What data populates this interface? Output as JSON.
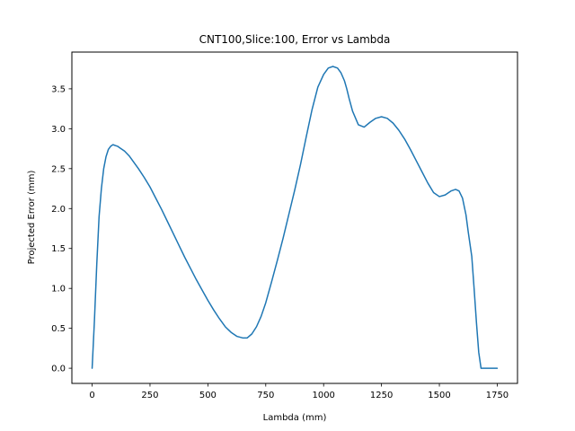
{
  "chart_data": {
    "type": "line",
    "title": "CNT100,Slice:100, Error vs Lambda",
    "xlabel": "Lambda (mm)",
    "ylabel": "Projected Error (mm)",
    "xlim": [
      -87.5,
      1837.5
    ],
    "ylim": [
      -0.19,
      3.96
    ],
    "xticks": [
      0,
      250,
      500,
      750,
      1000,
      1250,
      1500,
      1750
    ],
    "xtick_labels": [
      "0",
      "250",
      "500",
      "750",
      "1000",
      "1250",
      "1500",
      "1750"
    ],
    "yticks": [
      0.0,
      0.5,
      1.0,
      1.5,
      2.0,
      2.5,
      3.0,
      3.5
    ],
    "ytick_labels": [
      "0.0",
      "0.5",
      "1.0",
      "1.5",
      "2.0",
      "2.5",
      "3.0",
      "3.5"
    ],
    "grid": false,
    "color": "#1f77b4",
    "series": [
      {
        "name": "",
        "x": [
          0,
          10,
          20,
          30,
          40,
          50,
          60,
          70,
          80,
          90,
          100,
          110,
          120,
          140,
          160,
          180,
          200,
          225,
          250,
          275,
          300,
          325,
          350,
          375,
          400,
          425,
          450,
          475,
          500,
          525,
          550,
          575,
          600,
          625,
          650,
          670,
          690,
          710,
          730,
          750,
          775,
          800,
          825,
          850,
          875,
          900,
          925,
          950,
          975,
          1000,
          1020,
          1040,
          1060,
          1075,
          1090,
          1100,
          1110,
          1125,
          1150,
          1175,
          1200,
          1225,
          1250,
          1275,
          1300,
          1325,
          1350,
          1375,
          1400,
          1425,
          1450,
          1475,
          1500,
          1525,
          1550,
          1570,
          1585,
          1600,
          1615,
          1625,
          1640,
          1650,
          1660,
          1670,
          1680,
          1690,
          1700,
          1710,
          1720,
          1730,
          1740,
          1750
        ],
        "y": [
          0.0,
          0.6,
          1.3,
          1.9,
          2.25,
          2.5,
          2.65,
          2.74,
          2.78,
          2.8,
          2.79,
          2.78,
          2.76,
          2.72,
          2.66,
          2.58,
          2.5,
          2.39,
          2.27,
          2.13,
          1.99,
          1.84,
          1.69,
          1.54,
          1.39,
          1.25,
          1.11,
          0.98,
          0.85,
          0.73,
          0.62,
          0.52,
          0.45,
          0.4,
          0.38,
          0.38,
          0.43,
          0.52,
          0.65,
          0.82,
          1.08,
          1.35,
          1.63,
          1.93,
          2.23,
          2.55,
          2.9,
          3.24,
          3.52,
          3.68,
          3.76,
          3.78,
          3.76,
          3.7,
          3.6,
          3.5,
          3.38,
          3.22,
          3.05,
          3.02,
          3.08,
          3.13,
          3.15,
          3.13,
          3.07,
          2.98,
          2.87,
          2.74,
          2.6,
          2.46,
          2.32,
          2.2,
          2.15,
          2.17,
          2.22,
          2.24,
          2.22,
          2.13,
          1.92,
          1.7,
          1.4,
          1.0,
          0.58,
          0.2,
          0.0,
          0.0,
          0.0,
          0.0,
          0.0,
          0.0,
          0.0,
          0.0
        ]
      }
    ]
  }
}
